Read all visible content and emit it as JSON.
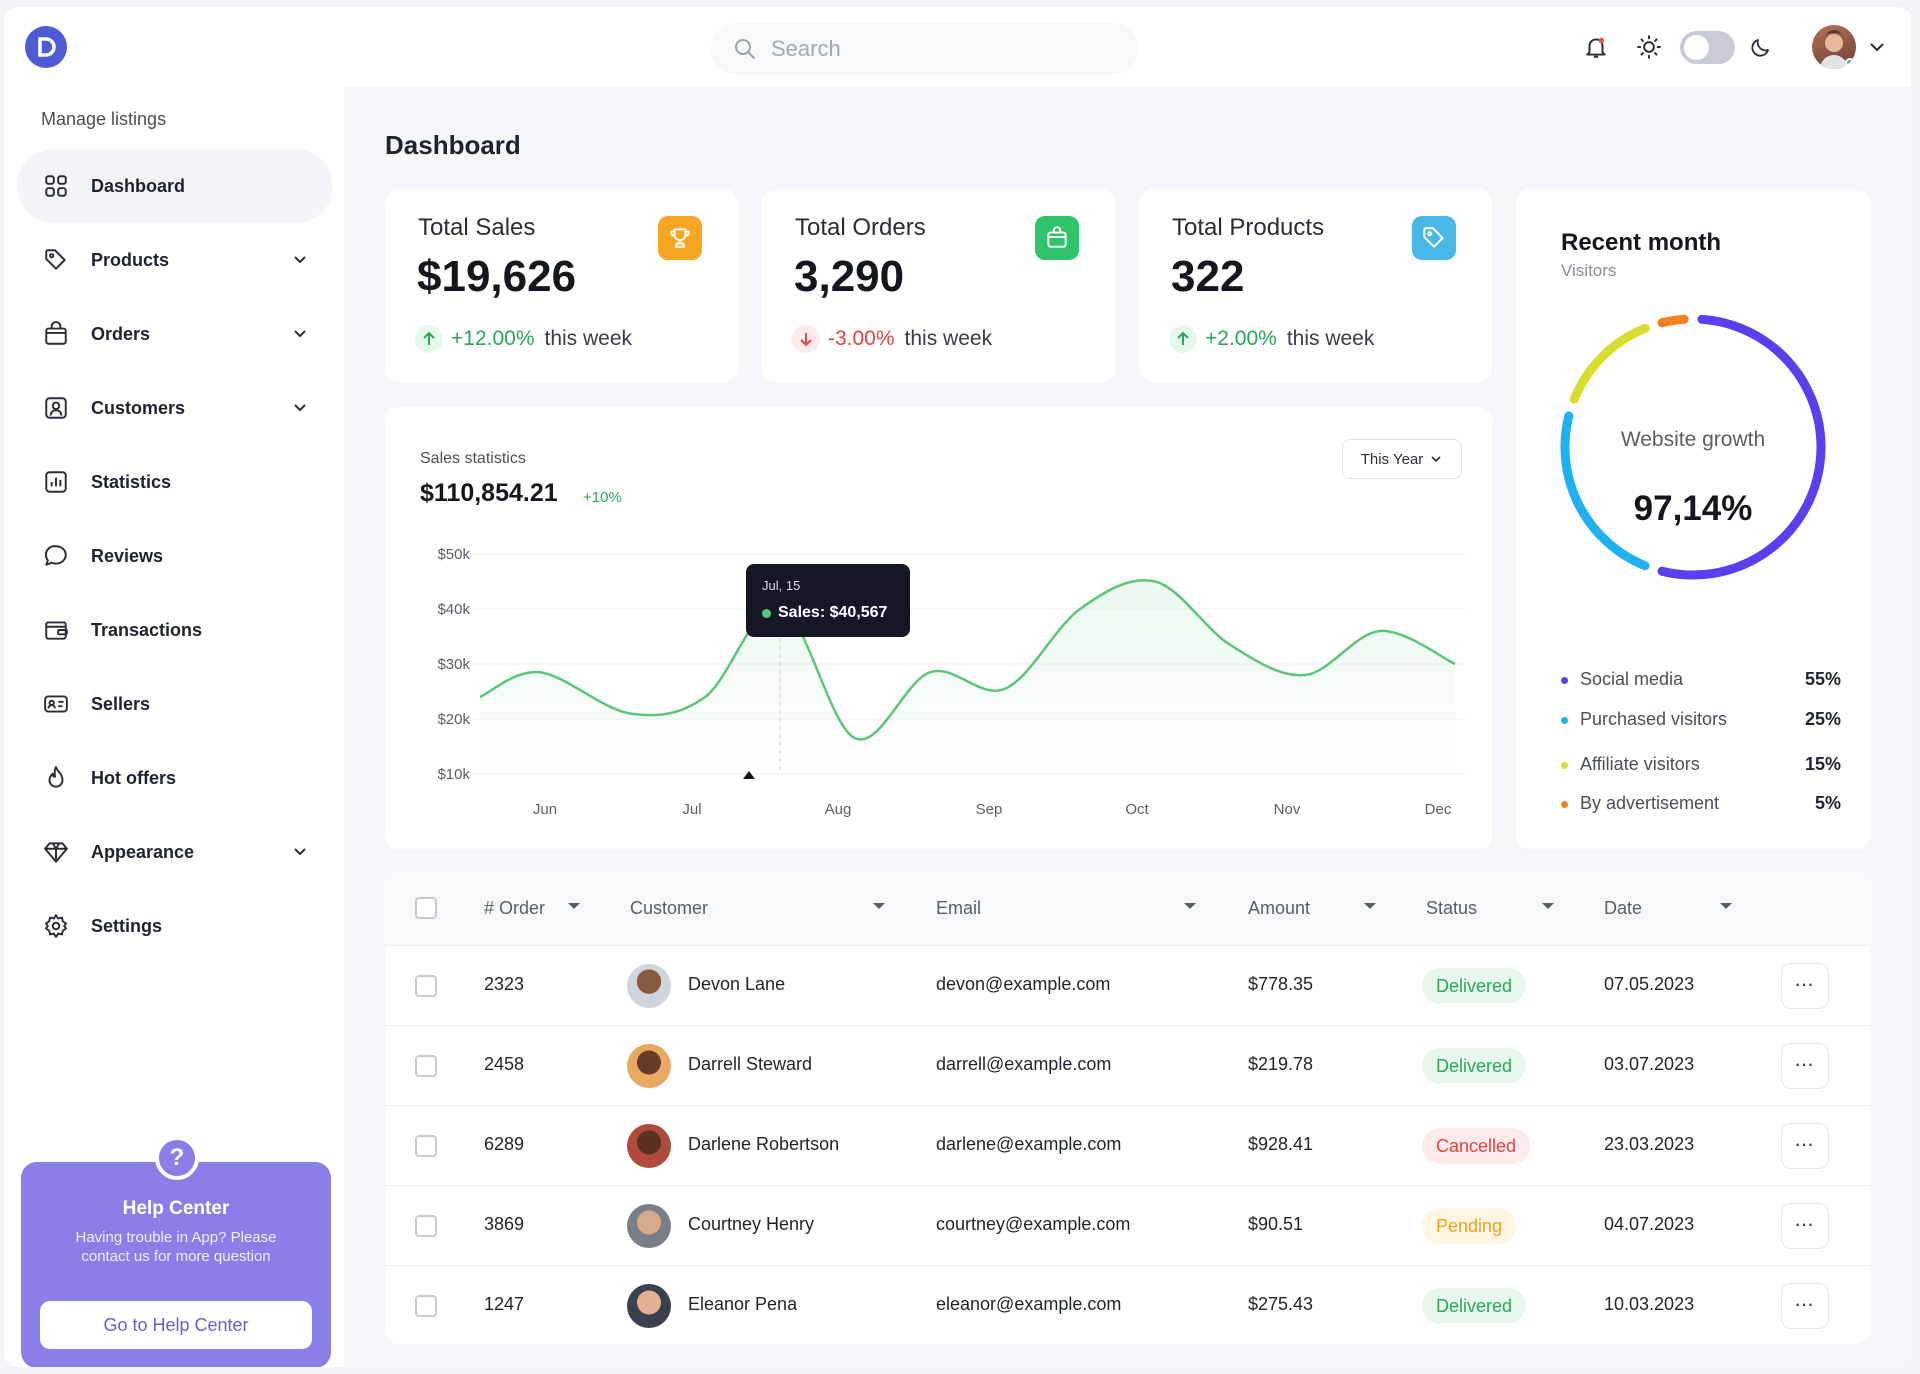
{
  "header": {
    "search_placeholder": "Search"
  },
  "sidebar": {
    "heading": "Manage listings",
    "items": [
      {
        "label": "Dashboard"
      },
      {
        "label": "Products"
      },
      {
        "label": "Orders"
      },
      {
        "label": "Customers"
      },
      {
        "label": "Statistics"
      },
      {
        "label": "Reviews"
      },
      {
        "label": "Transactions"
      },
      {
        "label": "Sellers"
      },
      {
        "label": "Hot offers"
      },
      {
        "label": "Appearance"
      },
      {
        "label": "Settings"
      }
    ],
    "help": {
      "icon_glyph": "?",
      "title": "Help Center",
      "desc": "Having trouble in App? Please contact us for more question",
      "button": "Go to Help Center"
    }
  },
  "page": {
    "title": "Dashboard"
  },
  "stats": [
    {
      "title": "Total Sales",
      "value": "$19,626",
      "change": "+12.00%",
      "period": "this week",
      "color": "#f5a623"
    },
    {
      "title": "Total Orders",
      "value": "3,290",
      "change": "-3.00%",
      "period": "this week",
      "color": "#2fc36b"
    },
    {
      "title": "Total Products",
      "value": "322",
      "change": "+2.00%",
      "period": "this week",
      "color": "#48b9e6"
    }
  ],
  "sales": {
    "label": "Sales statistics",
    "total": "$110,854.21",
    "change": "+10%",
    "range": "This Year",
    "tooltip": {
      "date": "Jul, 15",
      "text": "Sales: $40,567"
    }
  },
  "chart_data": {
    "type": "line",
    "title": "Sales statistics",
    "categories": [
      "Jun",
      "Jul",
      "Aug",
      "Sep",
      "Oct",
      "Nov",
      "Dec"
    ],
    "y_ticks": [
      "$10k",
      "$20k",
      "$30k",
      "$40k",
      "$50k"
    ],
    "ylim": [
      10000,
      50000
    ],
    "points": [
      [
        0,
        24000
      ],
      [
        0.4,
        28500
      ],
      [
        1,
        21000
      ],
      [
        1.5,
        24000
      ],
      [
        2,
        40567
      ],
      [
        2.5,
        16500
      ],
      [
        3,
        28500
      ],
      [
        3.5,
        25500
      ],
      [
        4,
        40000
      ],
      [
        4.5,
        45000
      ],
      [
        5,
        33500
      ],
      [
        5.5,
        28000
      ],
      [
        6,
        36000
      ],
      [
        6.5,
        30000
      ]
    ],
    "grid": true,
    "color": "#5cc57a"
  },
  "visitors": {
    "title": "Recent month",
    "subtitle": "Visitors",
    "center_label": "Website growth",
    "center_value": "97,14%",
    "segments": [
      {
        "name": "Social media",
        "value": "55%",
        "pct": 55,
        "color": "#5a3ff0"
      },
      {
        "name": "Purchased visitors",
        "value": "25%",
        "pct": 25,
        "color": "#1fb0f2"
      },
      {
        "name": "Affiliate visitors",
        "value": "15%",
        "pct": 15,
        "color": "#d6dd2e"
      },
      {
        "name": "By advertisement",
        "value": "5%",
        "pct": 5,
        "color": "#f47f1f"
      }
    ]
  },
  "table": {
    "headers": {
      "order": "# Order",
      "customer": "Customer",
      "email": "Email",
      "amount": "Amount",
      "status": "Status",
      "date": "Date"
    },
    "rows": [
      {
        "order": "2323",
        "customer": "Devon Lane",
        "email": "devon@example.com",
        "amount": "$778.35",
        "status": "Delivered",
        "date": "07.05.2023"
      },
      {
        "order": "2458",
        "customer": "Darrell Steward",
        "email": "darrell@example.com",
        "amount": "$219.78",
        "status": "Delivered",
        "date": "03.07.2023"
      },
      {
        "order": "6289",
        "customer": "Darlene Robertson",
        "email": "darlene@example.com",
        "amount": "$928.41",
        "status": "Cancelled",
        "date": "23.03.2023"
      },
      {
        "order": "3869",
        "customer": "Courtney Henry",
        "email": "courtney@example.com",
        "amount": "$90.51",
        "status": "Pending",
        "date": "04.07.2023"
      },
      {
        "order": "1247",
        "customer": "Eleanor Pena",
        "email": "eleanor@example.com",
        "amount": "$275.43",
        "status": "Delivered",
        "date": "10.03.2023"
      }
    ],
    "more_glyph": "···"
  }
}
